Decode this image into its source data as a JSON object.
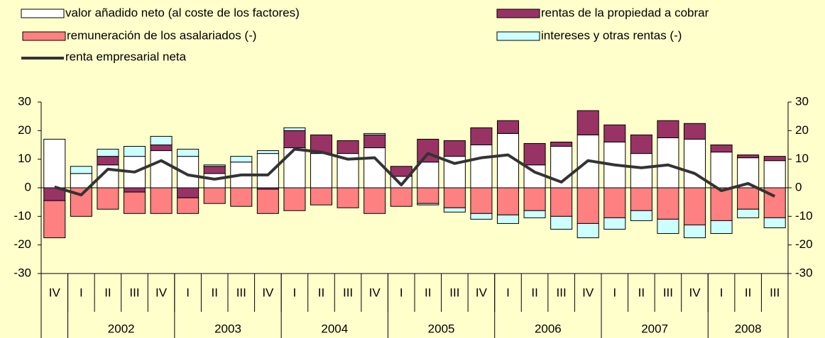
{
  "chart_data": {
    "type": "bar",
    "stacked": true,
    "categories": [
      "IV",
      "I",
      "II",
      "III",
      "IV",
      "I",
      "II",
      "III",
      "IV",
      "I",
      "II",
      "III",
      "IV",
      "I",
      "II",
      "III",
      "IV",
      "I",
      "II",
      "III",
      "IV",
      "I",
      "II",
      "III",
      "IV",
      "I",
      "II",
      "III"
    ],
    "year_groups": [
      {
        "label": null,
        "size": 1
      },
      {
        "label": "2002",
        "size": 4
      },
      {
        "label": "2003",
        "size": 4
      },
      {
        "label": "2004",
        "size": 4
      },
      {
        "label": "2005",
        "size": 4
      },
      {
        "label": "2006",
        "size": 4
      },
      {
        "label": "2007",
        "size": 4
      },
      {
        "label": "2008",
        "size": 3
      }
    ],
    "series": [
      {
        "name": "valor añadido neto (al coste de los factores)",
        "type": "bar",
        "color": "#FFFFFF",
        "values": [
          17,
          5,
          8,
          11,
          13,
          11,
          5,
          9,
          12,
          14,
          12,
          12,
          14,
          4,
          9,
          11,
          15,
          19,
          8,
          14.5,
          18.5,
          16,
          12,
          17.5,
          17,
          12.5,
          10.5,
          9.5
        ]
      },
      {
        "name": "rentas de la propiedad a cobrar",
        "type": "bar",
        "color": "#993366",
        "values": [
          -4.5,
          0,
          3,
          -1.5,
          2,
          -3.5,
          2.5,
          0,
          -0.5,
          6,
          6.5,
          4.5,
          4.5,
          3.5,
          8,
          5.5,
          6,
          4.5,
          7.5,
          1.5,
          8.5,
          6,
          6.5,
          6,
          5.5,
          2.5,
          1,
          1.5
        ]
      },
      {
        "name": "remuneración de los asalariados (-)",
        "type": "bar",
        "color": "#FF8080",
        "values": [
          -13,
          -10,
          -7.5,
          -7.5,
          -9,
          -5.5,
          -5.5,
          -6.5,
          -8.5,
          -8,
          -6,
          -7,
          -9,
          -6.5,
          -5.5,
          -7,
          -9,
          -9.5,
          -8,
          -10,
          -12.5,
          -10.5,
          -8,
          -11,
          -13,
          -11.5,
          -7.5,
          -10.5
        ]
      },
      {
        "name": "intereses y otras rentas (-)",
        "type": "bar",
        "color": "#CCFFFF",
        "values": [
          0,
          2.5,
          2.5,
          3.5,
          3,
          2.5,
          0.5,
          2,
          1,
          1,
          0,
          0,
          0.5,
          0,
          -0.5,
          -1.5,
          -2,
          -3,
          -2.5,
          -4.5,
          -5,
          -4,
          -3.5,
          -5,
          -4.5,
          -4.5,
          -3,
          -3.5
        ]
      },
      {
        "name": "renta empresarial neta",
        "type": "line",
        "color": "#333333",
        "values": [
          0.3,
          -2.5,
          6.5,
          5.5,
          9.5,
          4.5,
          3,
          4.5,
          4.5,
          13.5,
          12.5,
          10,
          10.5,
          1,
          12,
          8.5,
          10.5,
          11.5,
          5.5,
          2,
          9.5,
          8,
          7,
          8,
          5,
          -1,
          1.5,
          -3
        ]
      }
    ],
    "ylim": [
      -30,
      30
    ],
    "yticks": [
      -30,
      -20,
      -10,
      0,
      10,
      20,
      30
    ],
    "y2lim": [
      -30,
      30
    ],
    "y2ticks": [
      -30,
      -20,
      -10,
      0,
      10,
      20,
      30
    ]
  }
}
